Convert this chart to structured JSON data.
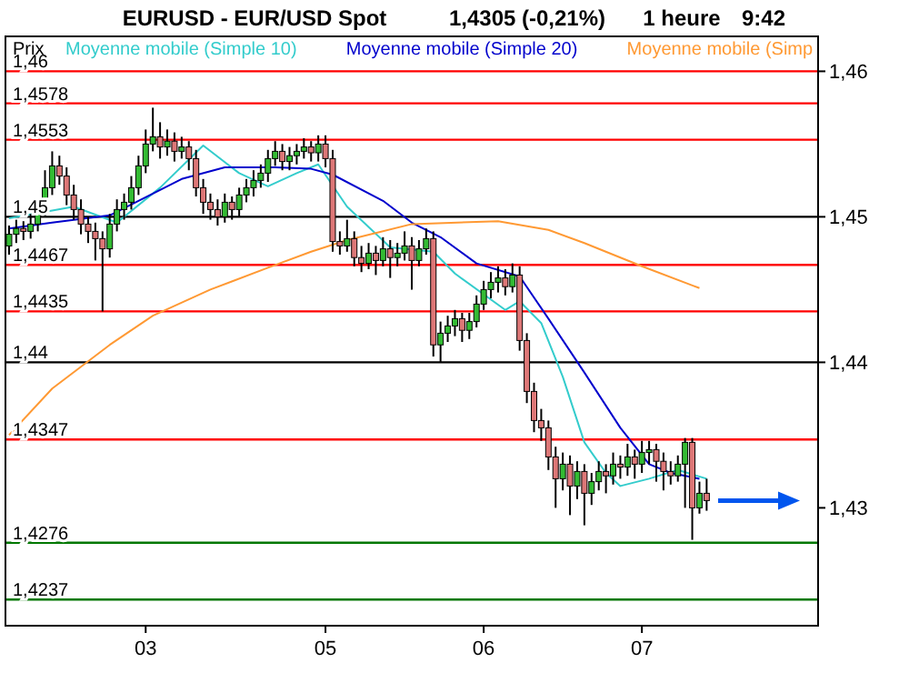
{
  "chart_data": {
    "type": "candlestick",
    "title": "EURUSD - EUR/USD Spot",
    "ylabel": "Prix",
    "annotations": [
      "1,4305 (-0,21%)",
      "1 heure",
      "9:42"
    ],
    "categories": [
      null,
      null,
      null,
      null,
      null,
      null,
      null,
      null,
      null,
      null,
      null,
      null,
      null,
      null,
      null,
      null,
      null,
      null,
      null,
      "03",
      null,
      null,
      null,
      null,
      null,
      null,
      null,
      null,
      null,
      null,
      null,
      null,
      null,
      null,
      null,
      null,
      null,
      null,
      null,
      null,
      null,
      null,
      null,
      null,
      "05",
      null,
      null,
      null,
      null,
      null,
      null,
      null,
      null,
      null,
      null,
      null,
      null,
      null,
      null,
      null,
      null,
      null,
      null,
      null,
      null,
      null,
      "06",
      null,
      null,
      null,
      null,
      null,
      null,
      null,
      null,
      null,
      null,
      null,
      null,
      null,
      null,
      null,
      null,
      null,
      null,
      null,
      null,
      null,
      "07",
      null,
      null,
      null,
      null,
      null,
      null,
      null,
      null,
      null,
      null,
      null,
      null,
      null,
      null,
      null,
      null,
      null,
      null,
      null,
      null,
      null,
      null,
      null,
      null
    ],
    "ohlc": [
      [
        1.448,
        1.4494,
        1.4474,
        1.4488
      ],
      [
        1.4488,
        1.4498,
        1.4482,
        1.4492
      ],
      [
        1.4492,
        1.4497,
        1.4484,
        1.449
      ],
      [
        1.449,
        1.4502,
        1.4485,
        1.4495
      ],
      [
        1.4495,
        1.4512,
        1.449,
        1.4505
      ],
      [
        1.4505,
        1.4532,
        1.45,
        1.452
      ],
      [
        1.452,
        1.4545,
        1.4515,
        1.4535
      ],
      [
        1.4535,
        1.4542,
        1.4522,
        1.4528
      ],
      [
        1.4528,
        1.4534,
        1.4508,
        1.4515
      ],
      [
        1.4515,
        1.4522,
        1.4498,
        1.4505
      ],
      [
        1.4505,
        1.4512,
        1.4488,
        1.4495
      ],
      [
        1.4495,
        1.45,
        1.4482,
        1.449
      ],
      [
        1.449,
        1.4496,
        1.447,
        1.4485
      ],
      [
        1.4485,
        1.449,
        1.4435,
        1.4478
      ],
      [
        1.4478,
        1.4502,
        1.4472,
        1.4495
      ],
      [
        1.4495,
        1.4512,
        1.449,
        1.4505
      ],
      [
        1.4505,
        1.4516,
        1.4498,
        1.451
      ],
      [
        1.451,
        1.4528,
        1.4505,
        1.452
      ],
      [
        1.452,
        1.4542,
        1.4515,
        1.4535
      ],
      [
        1.4535,
        1.456,
        1.453,
        1.455
      ],
      [
        1.455,
        1.4575,
        1.4545,
        1.4555
      ],
      [
        1.4555,
        1.4565,
        1.454,
        1.4548
      ],
      [
        1.4548,
        1.456,
        1.4542,
        1.4552
      ],
      [
        1.4552,
        1.4558,
        1.4538,
        1.4545
      ],
      [
        1.4545,
        1.4555,
        1.454,
        1.4548
      ],
      [
        1.4548,
        1.4552,
        1.4532,
        1.454
      ],
      [
        1.454,
        1.4546,
        1.4514,
        1.452
      ],
      [
        1.452,
        1.4526,
        1.4502,
        1.451
      ],
      [
        1.451,
        1.4516,
        1.4498,
        1.4505
      ],
      [
        1.4505,
        1.4512,
        1.4494,
        1.45
      ],
      [
        1.45,
        1.4516,
        1.4496,
        1.451
      ],
      [
        1.451,
        1.4514,
        1.4498,
        1.4505
      ],
      [
        1.4505,
        1.452,
        1.45,
        1.4515
      ],
      [
        1.4515,
        1.4526,
        1.451,
        1.452
      ],
      [
        1.452,
        1.4532,
        1.4514,
        1.4525
      ],
      [
        1.4525,
        1.4536,
        1.452,
        1.453
      ],
      [
        1.453,
        1.4546,
        1.4524,
        1.454
      ],
      [
        1.454,
        1.4552,
        1.4535,
        1.4545
      ],
      [
        1.4545,
        1.455,
        1.4532,
        1.4538
      ],
      [
        1.4538,
        1.4548,
        1.4532,
        1.4542
      ],
      [
        1.4542,
        1.455,
        1.4536,
        1.4545
      ],
      [
        1.4545,
        1.4554,
        1.454,
        1.4548
      ],
      [
        1.4548,
        1.4552,
        1.4538,
        1.4544
      ],
      [
        1.4544,
        1.4556,
        1.4538,
        1.455
      ],
      [
        1.455,
        1.4556,
        1.4534,
        1.454
      ],
      [
        1.454,
        1.4546,
        1.4476,
        1.4483
      ],
      [
        1.4483,
        1.449,
        1.4474,
        1.448
      ],
      [
        1.448,
        1.4498,
        1.4476,
        1.4485
      ],
      [
        1.4485,
        1.449,
        1.4466,
        1.4472
      ],
      [
        1.4472,
        1.448,
        1.4462,
        1.4468
      ],
      [
        1.4468,
        1.4482,
        1.4464,
        1.4475
      ],
      [
        1.4475,
        1.448,
        1.446,
        1.447
      ],
      [
        1.447,
        1.4486,
        1.4466,
        1.4478
      ],
      [
        1.4478,
        1.4484,
        1.4458,
        1.4472
      ],
      [
        1.4472,
        1.4482,
        1.4466,
        1.4475
      ],
      [
        1.4475,
        1.449,
        1.447,
        1.448
      ],
      [
        1.448,
        1.4486,
        1.445,
        1.447
      ],
      [
        1.447,
        1.4484,
        1.4466,
        1.4478
      ],
      [
        1.4478,
        1.4492,
        1.4474,
        1.4485
      ],
      [
        1.4485,
        1.449,
        1.4404,
        1.4412
      ],
      [
        1.4412,
        1.4428,
        1.44,
        1.442
      ],
      [
        1.442,
        1.4432,
        1.4414,
        1.4425
      ],
      [
        1.4425,
        1.4436,
        1.4418,
        1.443
      ],
      [
        1.443,
        1.4434,
        1.4414,
        1.4422
      ],
      [
        1.4422,
        1.4434,
        1.4416,
        1.4428
      ],
      [
        1.4428,
        1.4446,
        1.4424,
        1.444
      ],
      [
        1.444,
        1.4456,
        1.4436,
        1.445
      ],
      [
        1.445,
        1.4462,
        1.4444,
        1.4455
      ],
      [
        1.4455,
        1.4466,
        1.4448,
        1.4458
      ],
      [
        1.4458,
        1.4464,
        1.4446,
        1.4452
      ],
      [
        1.4452,
        1.4468,
        1.4448,
        1.446
      ],
      [
        1.446,
        1.4466,
        1.4408,
        1.4415
      ],
      [
        1.4415,
        1.442,
        1.4372,
        1.438
      ],
      [
        1.438,
        1.4386,
        1.4352,
        1.436
      ],
      [
        1.436,
        1.4368,
        1.4346,
        1.4355
      ],
      [
        1.4355,
        1.436,
        1.4326,
        1.4335
      ],
      [
        1.4335,
        1.4342,
        1.43,
        1.432
      ],
      [
        1.432,
        1.4338,
        1.4312,
        1.433
      ],
      [
        1.433,
        1.4336,
        1.4295,
        1.4315
      ],
      [
        1.4315,
        1.4332,
        1.4306,
        1.4325
      ],
      [
        1.4325,
        1.433,
        1.4288,
        1.431
      ],
      [
        1.431,
        1.4324,
        1.4302,
        1.4318
      ],
      [
        1.4318,
        1.4332,
        1.4312,
        1.4325
      ],
      [
        1.4325,
        1.433,
        1.431,
        1.4322
      ],
      [
        1.4322,
        1.4338,
        1.4316,
        1.433
      ],
      [
        1.433,
        1.4336,
        1.432,
        1.4328
      ],
      [
        1.4328,
        1.4344,
        1.4322,
        1.4335
      ],
      [
        1.4335,
        1.434,
        1.432,
        1.433
      ],
      [
        1.433,
        1.4346,
        1.4324,
        1.4338
      ],
      [
        1.4338,
        1.4346,
        1.433,
        1.434
      ],
      [
        1.434,
        1.4344,
        1.4318,
        1.4332
      ],
      [
        1.4332,
        1.4338,
        1.4312,
        1.4325
      ],
      [
        1.4325,
        1.4332,
        1.4316,
        1.4322
      ],
      [
        1.4322,
        1.4336,
        1.4318,
        1.433
      ],
      [
        1.433,
        1.4348,
        1.43,
        1.4345
      ],
      [
        1.4345,
        1.4348,
        1.4278,
        1.43
      ],
      [
        1.43,
        1.4318,
        1.4296,
        1.431
      ],
      [
        1.431,
        1.432,
        1.4298,
        1.4305
      ],
      null,
      null,
      null,
      null,
      null,
      null,
      null,
      null,
      null,
      null,
      null,
      null,
      null,
      null,
      null
    ],
    "series": [
      {
        "name": "Moyenne mobile (Simple 10)",
        "type": "line",
        "color": "#33cccc",
        "values": [
          1.4499,
          null,
          null,
          null,
          null,
          null,
          null,
          null,
          null,
          1.4507,
          null,
          null,
          null,
          null,
          null,
          1.4496,
          null,
          null,
          null,
          null,
          null,
          1.452,
          null,
          null,
          null,
          null,
          null,
          1.4549,
          null,
          null,
          null,
          null,
          1.453,
          null,
          null,
          null,
          1.4521,
          null,
          null,
          null,
          1.453,
          null,
          null,
          1.4536,
          null,
          null,
          null,
          1.4507,
          null,
          null,
          null,
          null,
          null,
          1.4479,
          null,
          null,
          null,
          null,
          null,
          1.4476,
          null,
          null,
          1.4461,
          null,
          null,
          null,
          null,
          null,
          null,
          1.4436,
          null,
          1.4442,
          null,
          null,
          1.4427,
          null,
          null,
          1.439,
          null,
          null,
          1.4345,
          null,
          null,
          1.4324,
          null,
          1.4315,
          null,
          null,
          null,
          1.432,
          null,
          null,
          null,
          1.4326,
          null,
          null,
          null,
          1.432,
          null,
          null,
          null,
          null,
          null,
          null,
          null,
          null,
          null,
          null,
          null,
          null,
          null,
          null,
          null
        ]
      },
      {
        "name": "Moyenne mobile (Simple 20)",
        "type": "line",
        "color": "#0000cc",
        "values": [
          1.4492,
          null,
          null,
          null,
          null,
          null,
          1.4496,
          null,
          null,
          null,
          null,
          null,
          null,
          null,
          1.4501,
          null,
          null,
          null,
          null,
          null,
          null,
          null,
          null,
          null,
          1.4526,
          null,
          null,
          null,
          null,
          null,
          1.4534,
          null,
          null,
          null,
          null,
          null,
          null,
          1.4534,
          null,
          null,
          null,
          null,
          1.4533,
          null,
          null,
          1.4529,
          null,
          null,
          null,
          null,
          null,
          null,
          1.4511,
          null,
          null,
          null,
          1.4496,
          null,
          null,
          null,
          1.4486,
          null,
          null,
          null,
          null,
          1.4468,
          null,
          null,
          null,
          null,
          null,
          1.4459,
          null,
          null,
          null,
          1.443,
          null,
          null,
          null,
          null,
          1.4393,
          null,
          null,
          null,
          null,
          1.4355,
          null,
          null,
          null,
          1.433,
          null,
          null,
          1.4324,
          null,
          null,
          null,
          1.432,
          null,
          null,
          null,
          null,
          null,
          null,
          null,
          null,
          null,
          null,
          null,
          null,
          null,
          null,
          null,
          null
        ]
      },
      {
        "name": "Moyenne mobile (Simp",
        "type": "line",
        "color": "#ff9933",
        "values": [
          1.435,
          null,
          null,
          null,
          null,
          null,
          1.4382,
          null,
          null,
          null,
          null,
          null,
          null,
          null,
          1.4412,
          null,
          null,
          null,
          null,
          null,
          1.4432,
          null,
          null,
          null,
          null,
          null,
          null,
          null,
          1.445,
          null,
          null,
          null,
          null,
          null,
          null,
          null,
          1.4465,
          null,
          null,
          null,
          null,
          null,
          1.4476,
          null,
          null,
          null,
          null,
          1.4484,
          null,
          null,
          null,
          null,
          null,
          null,
          null,
          null,
          1.4495,
          null,
          null,
          null,
          null,
          null,
          null,
          null,
          null,
          null,
          null,
          null,
          1.4497,
          null,
          null,
          null,
          null,
          null,
          null,
          1.4491,
          null,
          null,
          null,
          null,
          1.4482,
          null,
          null,
          null,
          null,
          null,
          null,
          null,
          1.4466,
          null,
          null,
          null,
          null,
          null,
          null,
          null,
          1.4451,
          null,
          null,
          null,
          null,
          null,
          null,
          null,
          null,
          null,
          null,
          null,
          null,
          null,
          null,
          null,
          null
        ]
      }
    ],
    "ylim": [
      1.4219,
      1.4624
    ],
    "yticks": [
      {
        "value": 1.46,
        "label": "1,46"
      },
      {
        "value": 1.45,
        "label": "1,45"
      },
      {
        "value": 1.44,
        "label": "1,44"
      },
      {
        "value": 1.43,
        "label": "1,43"
      }
    ],
    "ref_lines": [
      {
        "axis": "y",
        "value": 1.46,
        "label": "1,46",
        "color": "#ff0000"
      },
      {
        "axis": "y",
        "value": 1.4578,
        "label": "1,4578",
        "color": "#ff0000"
      },
      {
        "axis": "y",
        "value": 1.4553,
        "label": "1,4553",
        "color": "#ff0000"
      },
      {
        "axis": "y",
        "value": 1.45,
        "label": "1,45",
        "color": "#000000"
      },
      {
        "axis": "y",
        "value": 1.4467,
        "label": "1,4467",
        "color": "#ff0000"
      },
      {
        "axis": "y",
        "value": 1.4435,
        "label": "1,4435",
        "color": "#ff0000"
      },
      {
        "axis": "y",
        "value": 1.44,
        "label": "1,44",
        "color": "#000000"
      },
      {
        "axis": "y",
        "value": 1.4347,
        "label": "1,4347",
        "color": "#ff0000"
      },
      {
        "axis": "y",
        "value": 1.4276,
        "label": "1,4276",
        "color": "#007700"
      },
      {
        "axis": "y",
        "value": 1.4237,
        "label": "1,4237",
        "color": "#007700"
      }
    ],
    "legend": "top left"
  }
}
